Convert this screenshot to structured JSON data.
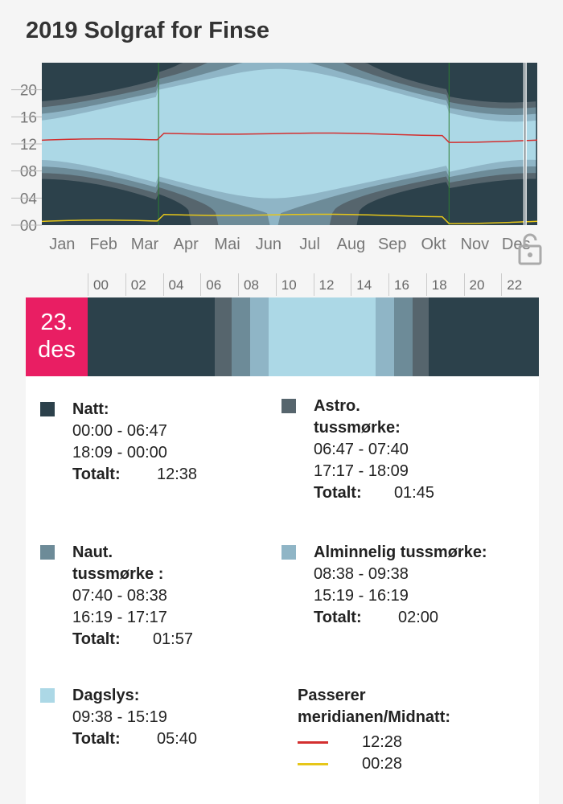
{
  "title": "2019 Solgraf for Finse",
  "colors": {
    "night": "#2c414b",
    "astro": "#56656d",
    "naut": "#6d8b98",
    "civil": "#8fb5c6",
    "day": "#acd8e6",
    "accent": "#e91e63",
    "meridian": "#d32f2f",
    "midnight": "#e6c619"
  },
  "chart_data": {
    "type": "area",
    "yticks": [
      "20",
      "16",
      "12",
      "08",
      "04",
      "00"
    ],
    "months": [
      "Jan",
      "Feb",
      "Mar",
      "Apr",
      "Mai",
      "Jun",
      "Jul",
      "Aug",
      "Sep",
      "Okt",
      "Nov",
      "Des"
    ],
    "ylim": [
      0,
      24
    ],
    "selected_day": "23. des",
    "dst_period": [
      "Mar",
      "Okt"
    ]
  },
  "lock_icon": "lock-open-icon",
  "hour_ticks": [
    "00",
    "02",
    "04",
    "06",
    "08",
    "10",
    "12",
    "14",
    "16",
    "18",
    "20",
    "22"
  ],
  "date": {
    "day": "23.",
    "month": "des"
  },
  "day_segments": [
    {
      "c": "night",
      "from": 0,
      "to": 6.78
    },
    {
      "c": "astro",
      "from": 6.78,
      "to": 7.67
    },
    {
      "c": "naut",
      "from": 7.67,
      "to": 8.63
    },
    {
      "c": "civil",
      "from": 8.63,
      "to": 9.63
    },
    {
      "c": "day",
      "from": 9.63,
      "to": 15.32
    },
    {
      "c": "civil",
      "from": 15.32,
      "to": 16.32
    },
    {
      "c": "naut",
      "from": 16.32,
      "to": 17.28
    },
    {
      "c": "astro",
      "from": 17.28,
      "to": 18.15
    },
    {
      "c": "night",
      "from": 18.15,
      "to": 24
    }
  ],
  "legend": {
    "total_label": "Totalt:",
    "natt": {
      "title": "Natt:",
      "times": [
        "00:00 - 06:47",
        "18:09 - 00:00"
      ],
      "total": "12:38"
    },
    "astro": {
      "title": "Astro. tussmørke:",
      "times": [
        "06:47 - 07:40",
        "17:17 - 18:09"
      ],
      "total": "01:45"
    },
    "naut": {
      "title": "Naut. tussmørke :",
      "times": [
        "07:40 - 08:38",
        "16:19 - 17:17"
      ],
      "total": "01:57"
    },
    "civil": {
      "title": "Alminnelig tussmørke:",
      "times": [
        "08:38 - 09:38",
        "15:19 - 16:19"
      ],
      "total": "02:00"
    },
    "day": {
      "title": "Dagslys:",
      "times": [
        "09:38 - 15:19"
      ],
      "total": "05:40"
    },
    "meridian": {
      "title": "Passerer meridianen/Midnatt:",
      "noon": "12:28",
      "midnight": "00:28"
    }
  }
}
